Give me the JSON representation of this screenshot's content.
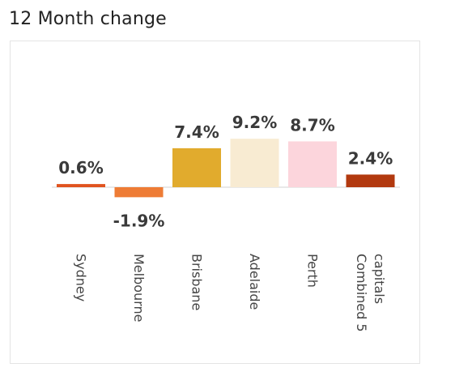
{
  "title": "12 Month change",
  "chart_data": {
    "type": "bar",
    "title": "12 Month change",
    "xlabel": "",
    "ylabel": "",
    "categories": [
      "Sydney",
      "Melbourne",
      "Brisbane",
      "Adelaide",
      "Perth",
      "Combined 5 capitals"
    ],
    "category_lines": [
      [
        "Sydney"
      ],
      [
        "Melbourne"
      ],
      [
        "Brisbane"
      ],
      [
        "Adelaide"
      ],
      [
        "Perth"
      ],
      [
        "Combined 5",
        "capitals"
      ]
    ],
    "values": [
      0.6,
      -1.9,
      7.4,
      9.2,
      8.7,
      2.4
    ],
    "labels": [
      "0.6%",
      "-1.9%",
      "7.4%",
      "9.2%",
      "8.7%",
      "2.4%"
    ],
    "colors": [
      "#e0531f",
      "#ee7c35",
      "#e1ab2d",
      "#f8ebd2",
      "#fcd5dc",
      "#b2390f"
    ],
    "ylim": [
      -1.9,
      9.2
    ],
    "grid": false,
    "legend": "none"
  }
}
